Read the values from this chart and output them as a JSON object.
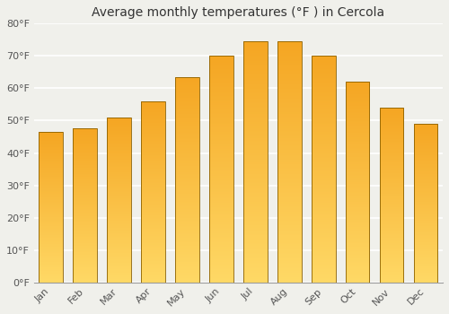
{
  "title": "Average monthly temperatures (°F ) in Cercola",
  "months": [
    "Jan",
    "Feb",
    "Mar",
    "Apr",
    "May",
    "Jun",
    "Jul",
    "Aug",
    "Sep",
    "Oct",
    "Nov",
    "Dec"
  ],
  "values": [
    46.5,
    47.5,
    51.0,
    56.0,
    63.5,
    70.0,
    74.5,
    74.5,
    70.0,
    62.0,
    54.0,
    49.0
  ],
  "bar_color_top": "#F5A623",
  "bar_color_bottom": "#FFD966",
  "ylim": [
    0,
    80
  ],
  "yticks": [
    0,
    10,
    20,
    30,
    40,
    50,
    60,
    70,
    80
  ],
  "ytick_labels": [
    "0°F",
    "10°F",
    "20°F",
    "30°F",
    "40°F",
    "50°F",
    "60°F",
    "70°F",
    "80°F"
  ],
  "background_color": "#f0f0eb",
  "grid_color": "#ffffff",
  "title_fontsize": 10,
  "tick_fontsize": 8,
  "bar_edge_color": "#8B6000"
}
